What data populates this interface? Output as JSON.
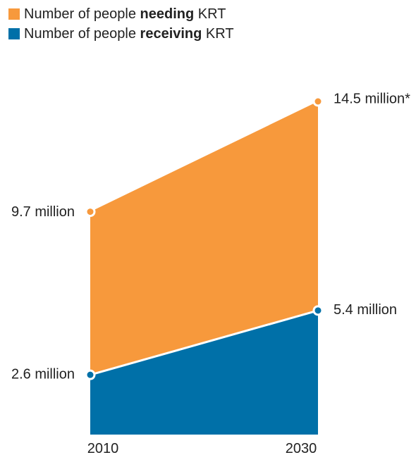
{
  "chart_data": {
    "type": "area",
    "x": [
      "2010",
      "2030"
    ],
    "series": [
      {
        "legend_prefix": "Number of people ",
        "legend_bold": "needing",
        "legend_suffix": " KRT",
        "values": [
          9.7,
          14.5
        ],
        "labels": [
          "9.7 million",
          "14.5 million*"
        ],
        "color": "#F7993C"
      },
      {
        "legend_prefix": "Number of people ",
        "legend_bold": "receiving",
        "legend_suffix": " KRT",
        "values": [
          2.6,
          5.4
        ],
        "labels": [
          "2.6 million",
          "5.4 million"
        ],
        "color": "#0070A8"
      }
    ],
    "ylim": [
      0,
      14.5
    ],
    "grid": false,
    "legend_position": "top-left"
  }
}
